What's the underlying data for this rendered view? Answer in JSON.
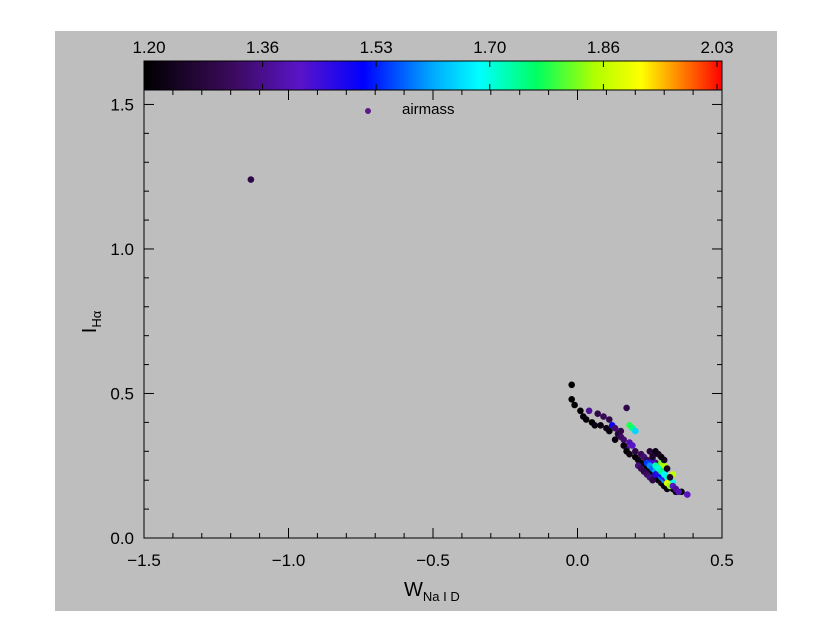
{
  "chart_data": {
    "type": "scatter",
    "xlim": [
      -1.5,
      0.5
    ],
    "ylim": [
      0.0,
      1.55
    ],
    "x_ticks": [
      -1.5,
      -1.0,
      -0.5,
      0.0,
      0.5
    ],
    "x_tick_labels": [
      "−1.5",
      "−1.0",
      "−0.5",
      "0.0",
      "0.5"
    ],
    "y_ticks": [
      0.0,
      0.5,
      1.0,
      1.5
    ],
    "y_tick_labels": [
      "0.0",
      "0.5",
      "1.0",
      "1.5"
    ],
    "xlabel": {
      "main": "W",
      "sub": "Na I D"
    },
    "ylabel": {
      "main": "I",
      "sub": "Hα"
    },
    "legend": {
      "label": "airmass",
      "color": "#5a1a8a",
      "placement": "top-center"
    },
    "grid": false,
    "colorbar": {
      "placement": "top",
      "range": [
        1.2,
        2.03
      ],
      "tick_labels": [
        "1.20",
        "1.36",
        "1.53",
        "1.70",
        "1.86",
        "2.03"
      ],
      "colormap": "rainbow (black-purple-blue-cyan-green-yellow-red)"
    },
    "color_encoding": "airmass",
    "points": [
      [
        -1.13,
        1.24,
        1.3
      ],
      [
        -0.02,
        0.53,
        1.2
      ],
      [
        -0.02,
        0.48,
        1.2
      ],
      [
        -0.01,
        0.46,
        1.21
      ],
      [
        0.01,
        0.44,
        1.2
      ],
      [
        0.02,
        0.42,
        1.22
      ],
      [
        0.03,
        0.41,
        1.21
      ],
      [
        0.05,
        0.4,
        1.2
      ],
      [
        0.06,
        0.39,
        1.22
      ],
      [
        0.04,
        0.44,
        1.38
      ],
      [
        0.07,
        0.43,
        1.3
      ],
      [
        0.09,
        0.42,
        1.32
      ],
      [
        0.11,
        0.41,
        1.3
      ],
      [
        0.12,
        0.39,
        1.5
      ],
      [
        0.13,
        0.38,
        1.34
      ],
      [
        0.14,
        0.36,
        1.28
      ],
      [
        0.15,
        0.35,
        1.33
      ],
      [
        0.16,
        0.34,
        1.34
      ],
      [
        0.17,
        0.45,
        1.3
      ],
      [
        0.18,
        0.39,
        1.78
      ],
      [
        0.19,
        0.38,
        1.75
      ],
      [
        0.2,
        0.37,
        1.65
      ],
      [
        0.18,
        0.33,
        1.4
      ],
      [
        0.19,
        0.32,
        1.42
      ],
      [
        0.17,
        0.31,
        1.38
      ],
      [
        0.15,
        0.37,
        1.3
      ],
      [
        0.11,
        0.37,
        1.21
      ],
      [
        0.13,
        0.34,
        1.22
      ],
      [
        0.1,
        0.38,
        1.23
      ],
      [
        0.08,
        0.39,
        1.22
      ],
      [
        0.16,
        0.32,
        1.22
      ],
      [
        0.17,
        0.3,
        1.2
      ],
      [
        0.18,
        0.29,
        1.22
      ],
      [
        0.2,
        0.28,
        1.21
      ],
      [
        0.21,
        0.27,
        1.23
      ],
      [
        0.22,
        0.26,
        1.2
      ],
      [
        0.23,
        0.25,
        1.22
      ],
      [
        0.24,
        0.24,
        1.21
      ],
      [
        0.25,
        0.23,
        1.23
      ],
      [
        0.26,
        0.22,
        1.2
      ],
      [
        0.27,
        0.21,
        1.22
      ],
      [
        0.28,
        0.2,
        1.21
      ],
      [
        0.29,
        0.19,
        1.23
      ],
      [
        0.3,
        0.18,
        1.2
      ],
      [
        0.31,
        0.17,
        1.22
      ],
      [
        0.33,
        0.17,
        1.21
      ],
      [
        0.34,
        0.16,
        1.23
      ],
      [
        0.36,
        0.16,
        1.2
      ],
      [
        0.2,
        0.3,
        1.3
      ],
      [
        0.22,
        0.29,
        1.32
      ],
      [
        0.23,
        0.28,
        1.35
      ],
      [
        0.24,
        0.27,
        1.31
      ],
      [
        0.25,
        0.3,
        1.28
      ],
      [
        0.26,
        0.29,
        1.3
      ],
      [
        0.27,
        0.26,
        1.33
      ],
      [
        0.28,
        0.25,
        1.29
      ],
      [
        0.29,
        0.24,
        1.34
      ],
      [
        0.3,
        0.23,
        1.31
      ],
      [
        0.21,
        0.25,
        1.36
      ],
      [
        0.22,
        0.24,
        1.32
      ],
      [
        0.23,
        0.23,
        1.3
      ],
      [
        0.24,
        0.22,
        1.33
      ],
      [
        0.25,
        0.21,
        1.36
      ],
      [
        0.26,
        0.2,
        1.3
      ],
      [
        0.24,
        0.26,
        1.55
      ],
      [
        0.25,
        0.25,
        1.6
      ],
      [
        0.26,
        0.24,
        1.58
      ],
      [
        0.27,
        0.23,
        1.62
      ],
      [
        0.28,
        0.22,
        1.55
      ],
      [
        0.29,
        0.21,
        1.57
      ],
      [
        0.3,
        0.2,
        1.6
      ],
      [
        0.31,
        0.19,
        1.56
      ],
      [
        0.26,
        0.27,
        1.45
      ],
      [
        0.27,
        0.22,
        1.48
      ],
      [
        0.28,
        0.23,
        1.46
      ],
      [
        0.29,
        0.22,
        1.5
      ],
      [
        0.3,
        0.21,
        1.44
      ],
      [
        0.31,
        0.2,
        1.47
      ],
      [
        0.32,
        0.19,
        1.49
      ],
      [
        0.27,
        0.25,
        1.72
      ],
      [
        0.28,
        0.24,
        1.7
      ],
      [
        0.29,
        0.23,
        1.74
      ],
      [
        0.3,
        0.22,
        1.68
      ],
      [
        0.31,
        0.21,
        1.71
      ],
      [
        0.32,
        0.2,
        1.73
      ],
      [
        0.33,
        0.19,
        1.69
      ],
      [
        0.29,
        0.26,
        1.82
      ],
      [
        0.3,
        0.25,
        1.85
      ],
      [
        0.31,
        0.19,
        1.88
      ],
      [
        0.32,
        0.18,
        1.83
      ],
      [
        0.33,
        0.22,
        1.86
      ],
      [
        0.33,
        0.18,
        1.42
      ],
      [
        0.34,
        0.17,
        1.38
      ],
      [
        0.35,
        0.16,
        1.4
      ],
      [
        0.38,
        0.15,
        1.42
      ],
      [
        0.32,
        0.21,
        1.26
      ],
      [
        0.31,
        0.24,
        1.24
      ],
      [
        0.3,
        0.27,
        1.25
      ],
      [
        0.29,
        0.28,
        1.22
      ],
      [
        0.28,
        0.29,
        1.24
      ],
      [
        0.27,
        0.3,
        1.23
      ],
      [
        0.26,
        0.28,
        1.26
      ]
    ]
  }
}
